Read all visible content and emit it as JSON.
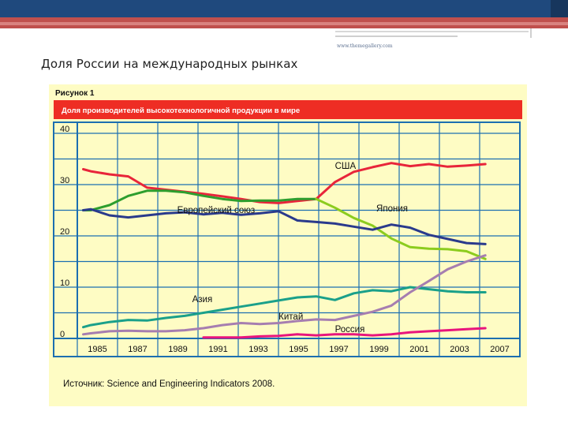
{
  "slide": {
    "title": "Доля России на международных рынках",
    "watermark": "www.themegallery.com"
  },
  "figure": {
    "number_label": "Рисунок 1",
    "header": "Доля производителей высокотехнологичной продукции в мире",
    "source": "Источник: Science and Engineering Indicators 2008."
  },
  "colors": {
    "USA": "#e8253a",
    "EU": "#2e9e2e",
    "Japan": "#8ccc1e",
    "Other": "#2a3a8c",
    "Asia": "#1aa08a",
    "China": "#a67eb0",
    "Russia": "#e8157d",
    "header": "#ee2d24",
    "grid": "#1c6fb0"
  },
  "chart_data": {
    "type": "line",
    "title": "Доля производителей высокотехнологичной продукции в мире",
    "xlabel": "",
    "ylabel": "",
    "xlim": [
      1985,
      2007
    ],
    "ylim": [
      0,
      40
    ],
    "yticks": [
      0,
      10,
      20,
      30,
      40
    ],
    "xtick_labels": [
      "1985",
      "1987",
      "1989",
      "1991",
      "1993",
      "1995",
      "1997",
      "1999",
      "2001",
      "2003",
      "2007"
    ],
    "grid": true,
    "series": [
      {
        "name": "США",
        "key": "USA",
        "label_x": 1998,
        "label_y": 33.1,
        "x": [
          1984.6,
          1985,
          1986,
          1987,
          1988,
          1989,
          1990,
          1991,
          1992,
          1993,
          1994,
          1995,
          1996,
          1997,
          1998,
          1999,
          2000,
          2001,
          2002,
          2003,
          2004,
          2005,
          2006
        ],
        "y": [
          33,
          32.6,
          32,
          31.6,
          29.4,
          29,
          28.6,
          28.2,
          27.7,
          27.2,
          26.6,
          26.4,
          26.8,
          27.2,
          30.5,
          32.5,
          33.4,
          34.2,
          33.6,
          34,
          33.5,
          33.7,
          34
        ]
      },
      {
        "name": "Европейский союз",
        "key": "EU",
        "label_x": 1989.6,
        "label_y": 24.5,
        "x": [
          1984.6,
          1985,
          1986,
          1987,
          1988,
          1989,
          1990,
          1991,
          1992,
          1993,
          1994,
          1995,
          1996,
          1997
        ],
        "y": [
          25,
          25,
          26,
          27.8,
          28.8,
          28.8,
          28.5,
          27.8,
          27.2,
          26.8,
          26.9,
          26.9,
          27.2,
          27.2
        ]
      },
      {
        "name": "Япония",
        "key": "Japan",
        "label_x": 2000.2,
        "label_y": 24.8,
        "x": [
          1997,
          1998,
          1999,
          2000,
          2001,
          2002,
          2003,
          2004,
          2005,
          2006
        ],
        "y": [
          27.2,
          25.5,
          23.5,
          22,
          19.5,
          17.8,
          17.5,
          17.4,
          17,
          15.5
        ]
      },
      {
        "name": "",
        "key": "Other",
        "x": [
          1984.6,
          1985,
          1986,
          1987,
          1988,
          1989,
          1990,
          1991,
          1992,
          1993,
          1994,
          1995,
          1996,
          1997,
          1998,
          1999,
          2000,
          2001,
          2002,
          2003,
          2004,
          2005,
          2006
        ],
        "y": [
          25,
          25.2,
          24,
          23.6,
          24,
          24.4,
          24.6,
          24.2,
          24.5,
          24.1,
          24.4,
          24.8,
          23,
          22.7,
          22.4,
          21.8,
          21.2,
          22.2,
          21.6,
          20.2,
          19.4,
          18.6,
          18.4
        ]
      },
      {
        "name": "Азия",
        "key": "Asia",
        "label_x": 1990.4,
        "label_y": 7.1,
        "x": [
          1984.6,
          1985,
          1986,
          1987,
          1988,
          1989,
          1990,
          1991,
          1992,
          1993,
          1994,
          1995,
          1996,
          1997,
          1998,
          1999,
          2000,
          2001,
          2002,
          2003,
          2004,
          2005,
          2006
        ],
        "y": [
          2.2,
          2.6,
          3.2,
          3.6,
          3.5,
          4,
          4.4,
          5,
          5.6,
          6.2,
          6.8,
          7.4,
          8,
          8.2,
          7.5,
          8.8,
          9.4,
          9.2,
          10,
          9.6,
          9.2,
          9,
          9
        ]
      },
      {
        "name": "Китай",
        "key": "China",
        "label_x": 1995,
        "label_y": 3.7,
        "x": [
          1984.6,
          1985,
          1986,
          1987,
          1988,
          1989,
          1990,
          1991,
          1992,
          1993,
          1994,
          1995,
          1996,
          1997,
          1998,
          1999,
          2000,
          2001,
          2002,
          2003,
          2004,
          2005,
          2006
        ],
        "y": [
          0.8,
          1,
          1.4,
          1.5,
          1.4,
          1.4,
          1.6,
          2,
          2.6,
          3,
          2.8,
          3,
          3.4,
          3.7,
          3.6,
          4.4,
          5.2,
          6.4,
          9,
          11.2,
          13.5,
          15,
          16.2
        ]
      },
      {
        "name": "Россия",
        "key": "Russia",
        "label_x": 1998,
        "label_y": 1.2,
        "x": [
          1991,
          1992,
          1993,
          1994,
          1995,
          1996,
          1997,
          1998,
          1999,
          2000,
          2001,
          2002,
          2003,
          2004,
          2005,
          2006
        ],
        "y": [
          0.2,
          0.2,
          0.2,
          0.4,
          0.5,
          0.8,
          0.6,
          0.8,
          0.8,
          0.6,
          0.8,
          1.2,
          1.4,
          1.6,
          1.8,
          2
        ]
      }
    ]
  }
}
